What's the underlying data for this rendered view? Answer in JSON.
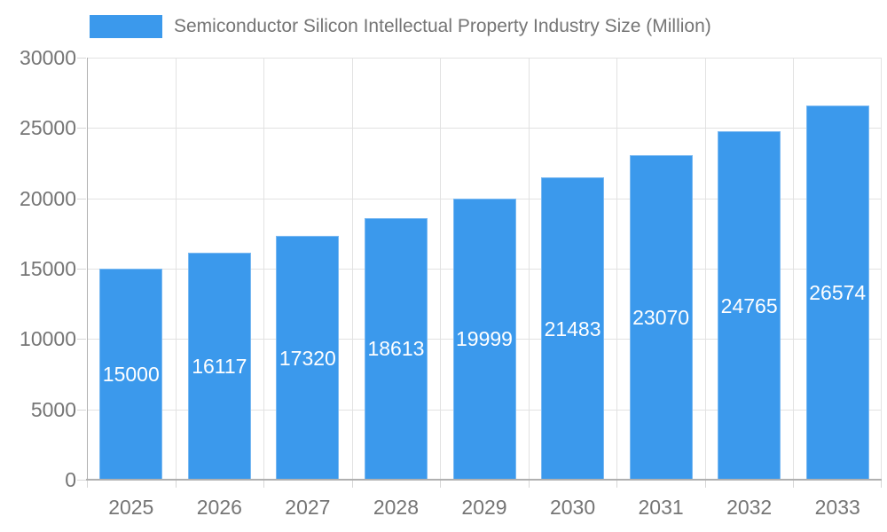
{
  "chart_data": {
    "type": "bar",
    "title": "Semiconductor Silicon Intellectual Property Industry Size (Million)",
    "categories": [
      "2025",
      "2026",
      "2027",
      "2028",
      "2029",
      "2030",
      "2031",
      "2032",
      "2033"
    ],
    "values": [
      15000,
      16117,
      17320,
      18613,
      19999,
      21483,
      23070,
      24765,
      26574
    ],
    "xlabel": "",
    "ylabel": "",
    "ylim": [
      0,
      30000
    ],
    "yticks": [
      0,
      5000,
      10000,
      15000,
      20000,
      25000,
      30000
    ],
    "grid": true,
    "legend_position": "top-left",
    "value_labels": "inside-center",
    "colors": {
      "bar": "#3B99EC",
      "bar_label": "#FFFFFF",
      "axis_text": "#757575",
      "legend_text": "#757575",
      "grid_line": "#E2E2E2",
      "axis_line": "#B0B0B0",
      "tick_line": "#D6D6D6",
      "background": "#FFFFFF"
    }
  }
}
